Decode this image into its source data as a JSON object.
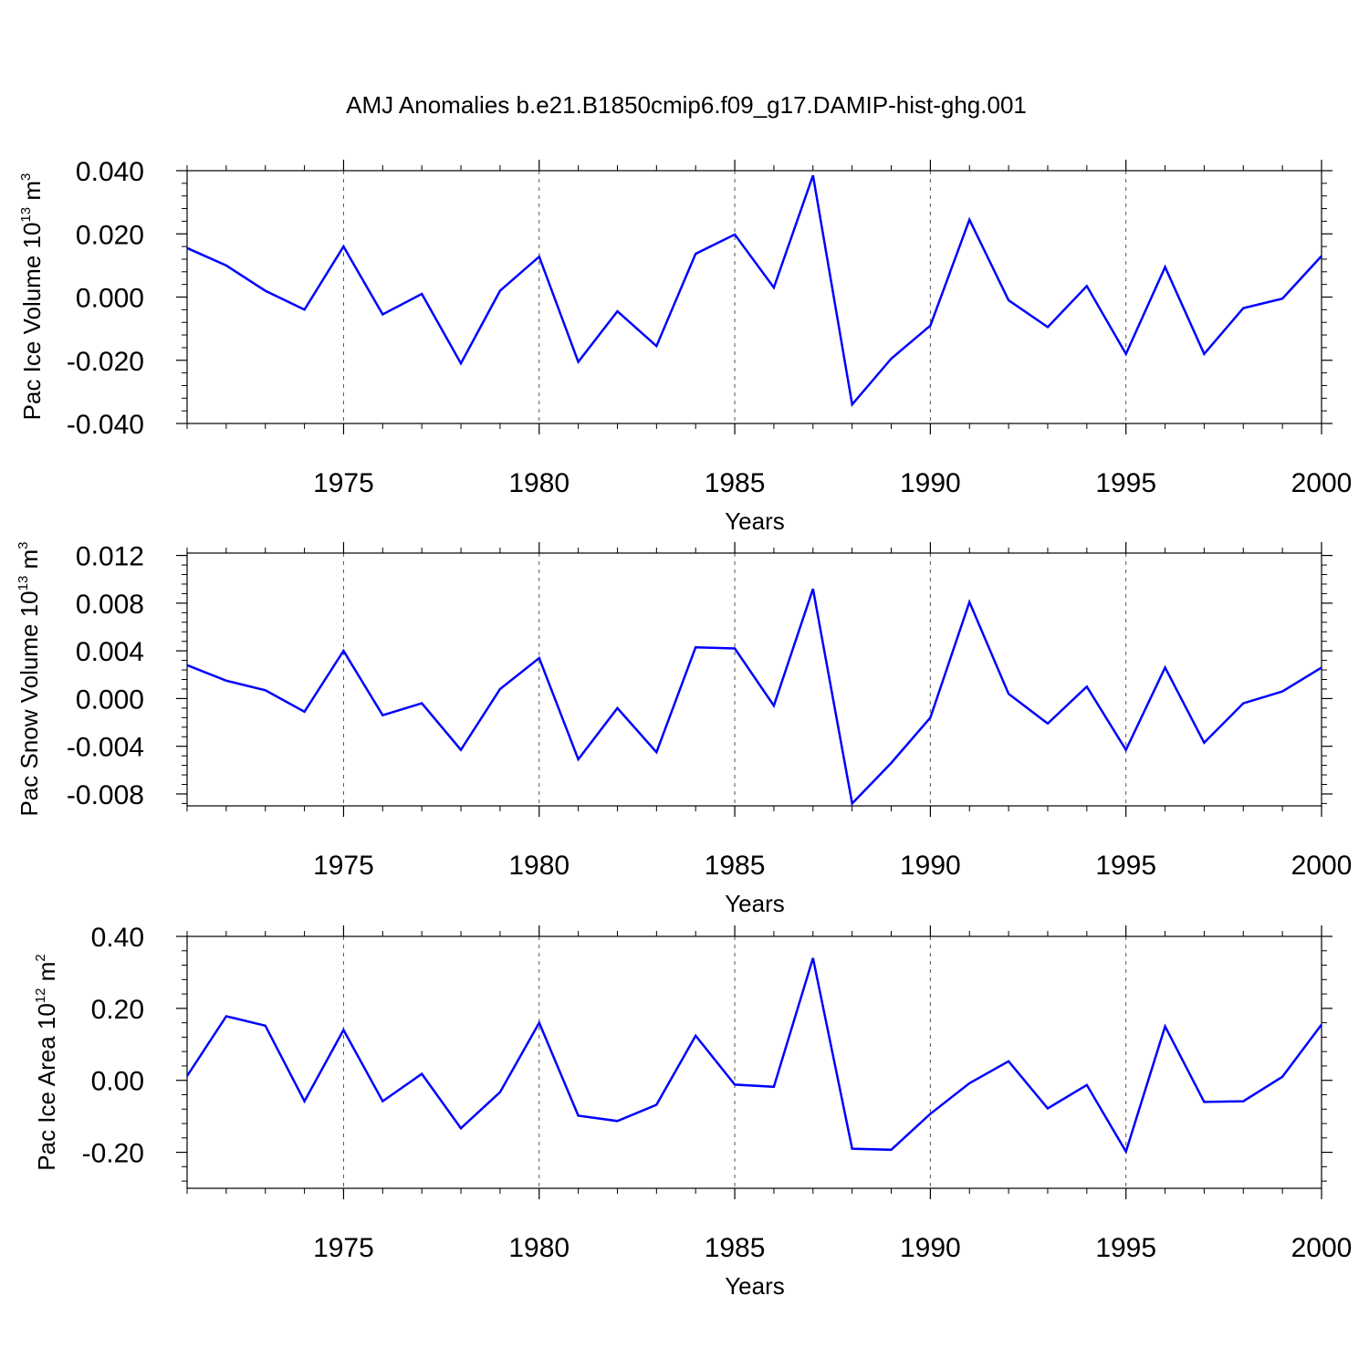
{
  "title": "AMJ Anomalies b.e21.B1850cmip6.f09_g17.DAMIP-hist-ghg.001",
  "line_color": "#0000ff",
  "chart_data": [
    {
      "type": "line",
      "xlabel": "Years",
      "ylabel": {
        "prefix": "Pac Ice Volume 10",
        "sup1": "13",
        "mid": " m",
        "sup2": "3"
      },
      "xlim": [
        1971,
        2000
      ],
      "ylim": [
        -0.04,
        0.04
      ],
      "xticks": [
        1975,
        1980,
        1985,
        1990,
        1995,
        2000
      ],
      "xtick_labels": [
        "1975",
        "1980",
        "1985",
        "1990",
        "1995",
        "2000"
      ],
      "yticks": [
        -0.04,
        -0.02,
        0.0,
        0.02,
        0.04
      ],
      "ytick_labels": [
        "-0.040",
        "-0.020",
        "0.000",
        "0.020",
        "0.040"
      ],
      "grid": "vertical dashed at major x ticks",
      "x": [
        1971,
        1972,
        1973,
        1974,
        1975,
        1976,
        1977,
        1978,
        1979,
        1980,
        1981,
        1982,
        1983,
        1984,
        1985,
        1986,
        1987,
        1988,
        1989,
        1990,
        1991,
        1992,
        1993,
        1994,
        1995,
        1996,
        1997,
        1998,
        1999,
        2000
      ],
      "values": [
        0.0155,
        0.01,
        0.002,
        -0.004,
        0.016,
        -0.0055,
        0.001,
        -0.021,
        0.002,
        0.0128,
        -0.0205,
        -0.0045,
        -0.0155,
        0.0137,
        0.0198,
        0.003,
        0.0385,
        -0.034,
        -0.0195,
        -0.009,
        0.0245,
        -0.001,
        -0.0095,
        0.0035,
        -0.018,
        0.0095,
        -0.018,
        -0.0035,
        -0.0005,
        0.013
      ]
    },
    {
      "type": "line",
      "xlabel": "Years",
      "ylabel": {
        "prefix": "Pac Snow Volume 10",
        "sup1": "13",
        "mid": " m",
        "sup2": "3"
      },
      "xlim": [
        1971,
        2000
      ],
      "ylim": [
        -0.009,
        0.0122
      ],
      "xticks": [
        1975,
        1980,
        1985,
        1990,
        1995,
        2000
      ],
      "xtick_labels": [
        "1975",
        "1980",
        "1985",
        "1990",
        "1995",
        "2000"
      ],
      "yticks": [
        -0.008,
        -0.004,
        0.0,
        0.004,
        0.008,
        0.012
      ],
      "ytick_labels": [
        "-0.008",
        "-0.004",
        "0.000",
        "0.004",
        "0.008",
        "0.012"
      ],
      "grid": "vertical dashed at major x ticks",
      "x": [
        1971,
        1972,
        1973,
        1974,
        1975,
        1976,
        1977,
        1978,
        1979,
        1980,
        1981,
        1982,
        1983,
        1984,
        1985,
        1986,
        1987,
        1988,
        1989,
        1990,
        1991,
        1992,
        1993,
        1994,
        1995,
        1996,
        1997,
        1998,
        1999,
        2000
      ],
      "values": [
        0.0028,
        0.0015,
        0.0007,
        -0.0011,
        0.004,
        -0.0014,
        -0.0004,
        -0.0043,
        0.0008,
        0.0034,
        -0.0051,
        -0.0008,
        -0.0045,
        0.0043,
        0.0042,
        -0.0006,
        0.0092,
        -0.0088,
        -0.0054,
        -0.0016,
        0.0081,
        0.0004,
        -0.0021,
        0.001,
        -0.0043,
        0.0026,
        -0.0037,
        -0.0004,
        0.0006,
        0.0026
      ]
    },
    {
      "type": "line",
      "xlabel": "Years",
      "ylabel": {
        "prefix": "Pac Ice Area 10",
        "sup1": "12",
        "mid": " m",
        "sup2": "2"
      },
      "xlim": [
        1971,
        2000
      ],
      "ylim": [
        -0.3,
        0.4
      ],
      "xticks": [
        1975,
        1980,
        1985,
        1990,
        1995,
        2000
      ],
      "xtick_labels": [
        "1975",
        "1980",
        "1985",
        "1990",
        "1995",
        "2000"
      ],
      "yticks": [
        -0.2,
        0.0,
        0.2,
        0.4
      ],
      "ytick_labels": [
        "-0.20",
        "0.00",
        "0.20",
        "0.40"
      ],
      "grid": "vertical dashed at major x ticks",
      "x": [
        1971,
        1972,
        1973,
        1974,
        1975,
        1976,
        1977,
        1978,
        1979,
        1980,
        1981,
        1982,
        1983,
        1984,
        1985,
        1986,
        1987,
        1988,
        1989,
        1990,
        1991,
        1992,
        1993,
        1994,
        1995,
        1996,
        1997,
        1998,
        1999,
        2000
      ],
      "values": [
        0.012,
        0.178,
        0.152,
        -0.058,
        0.14,
        -0.058,
        0.018,
        -0.133,
        -0.033,
        0.16,
        -0.098,
        -0.113,
        -0.068,
        0.124,
        -0.012,
        -0.018,
        0.34,
        -0.19,
        -0.193,
        -0.093,
        -0.008,
        0.053,
        -0.078,
        -0.013,
        -0.198,
        0.15,
        -0.06,
        -0.058,
        0.01,
        0.155
      ]
    }
  ]
}
